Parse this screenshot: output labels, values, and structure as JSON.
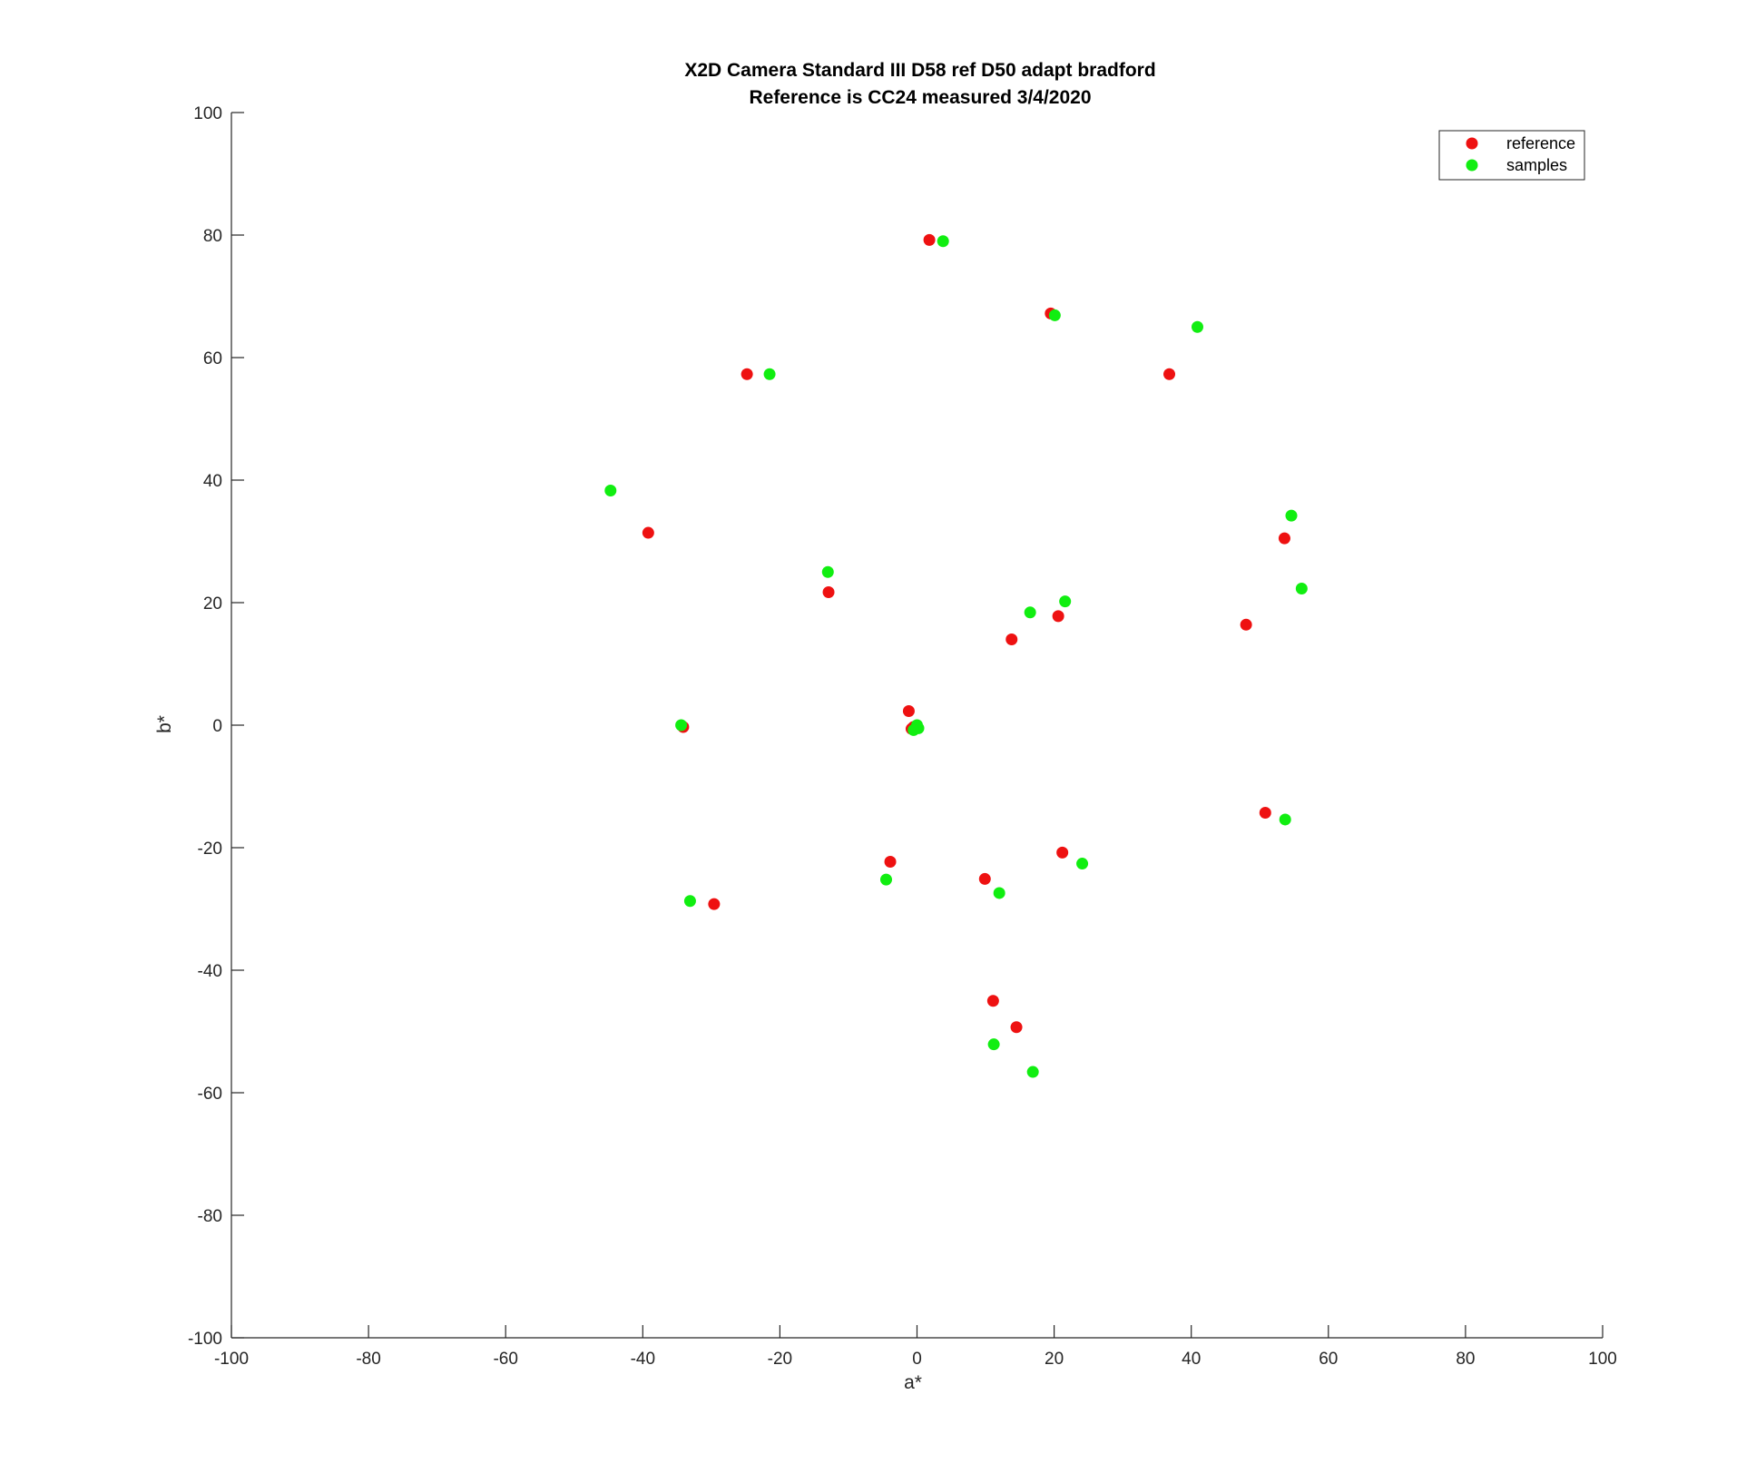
{
  "chart_data": {
    "type": "scatter",
    "title": [
      "X2D Camera Standard III D58 ref D50 adapt bradford",
      "Reference is CC24 measured 3/4/2020"
    ],
    "xlabel": "a*",
    "ylabel": "b*",
    "xlim": [
      -100,
      100
    ],
    "ylim": [
      -100,
      100
    ],
    "xticks": [
      -100,
      -80,
      -60,
      -40,
      -20,
      0,
      20,
      40,
      60,
      80,
      100
    ],
    "yticks": [
      -100,
      -80,
      -60,
      -40,
      -20,
      0,
      20,
      40,
      60,
      80,
      100
    ],
    "grid": false,
    "legend_position": "top-right",
    "series": [
      {
        "name": "reference",
        "color": "#ee1111",
        "points": [
          [
            1.8,
            79.2
          ],
          [
            19.5,
            67.2
          ],
          [
            -24.8,
            57.3
          ],
          [
            36.8,
            57.3
          ],
          [
            -39.2,
            31.4
          ],
          [
            53.6,
            30.5
          ],
          [
            -12.9,
            21.7
          ],
          [
            48.0,
            16.4
          ],
          [
            20.6,
            17.8
          ],
          [
            13.8,
            14.0
          ],
          [
            -1.2,
            2.3
          ],
          [
            -0.8,
            -0.6
          ],
          [
            -0.5,
            -0.3
          ],
          [
            -34.1,
            -0.3
          ],
          [
            50.8,
            -14.3
          ],
          [
            -3.9,
            -22.3
          ],
          [
            21.2,
            -20.8
          ],
          [
            9.9,
            -25.1
          ],
          [
            -29.6,
            -29.2
          ],
          [
            11.1,
            -45.0
          ],
          [
            14.5,
            -49.3
          ]
        ]
      },
      {
        "name": "samples",
        "color": "#11ee11",
        "points": [
          [
            3.8,
            79.0
          ],
          [
            20.1,
            66.9
          ],
          [
            -21.5,
            57.3
          ],
          [
            40.9,
            65.0
          ],
          [
            -44.7,
            38.3
          ],
          [
            54.6,
            34.2
          ],
          [
            -13.0,
            25.0
          ],
          [
            56.1,
            22.3
          ],
          [
            21.6,
            20.2
          ],
          [
            16.5,
            18.4
          ],
          [
            -34.4,
            0.0
          ],
          [
            0.0,
            0.0
          ],
          [
            0.2,
            -0.5
          ],
          [
            -0.5,
            -0.8
          ],
          [
            53.7,
            -15.4
          ],
          [
            -4.5,
            -25.2
          ],
          [
            24.1,
            -22.6
          ],
          [
            12.0,
            -27.4
          ],
          [
            -33.1,
            -28.7
          ],
          [
            11.2,
            -52.1
          ],
          [
            16.9,
            -56.6
          ]
        ]
      }
    ]
  }
}
